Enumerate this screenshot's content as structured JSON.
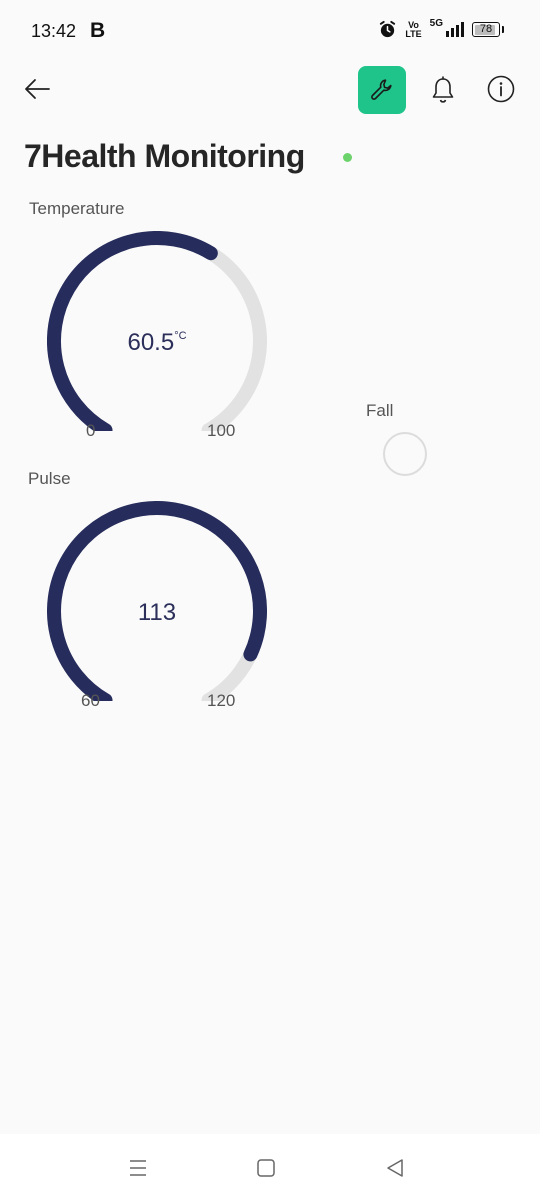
{
  "status_bar": {
    "time": "13:42",
    "carrier_badge": "B",
    "volte_top": "Vo",
    "volte_bottom": "LTE",
    "network": "5G",
    "battery": "78"
  },
  "header": {
    "title": "7Health Monitoring",
    "online_color": "#6cd36c",
    "accent_color": "#1fc48b",
    "icons": [
      "back-arrow-icon",
      "wrench-icon",
      "bell-icon",
      "info-icon"
    ]
  },
  "temperature": {
    "label": "Temperature",
    "value": "60.5",
    "unit": "°C",
    "min": "0",
    "max": "100",
    "level": 0.605
  },
  "pulse": {
    "label": "Pulse",
    "value": "113",
    "min": "60",
    "max": "120",
    "level": 0.883
  },
  "fall": {
    "label": "Fall",
    "state": "off"
  },
  "colors": {
    "gauge_fill": "#262c5c",
    "gauge_track": "#e2e2e2"
  }
}
